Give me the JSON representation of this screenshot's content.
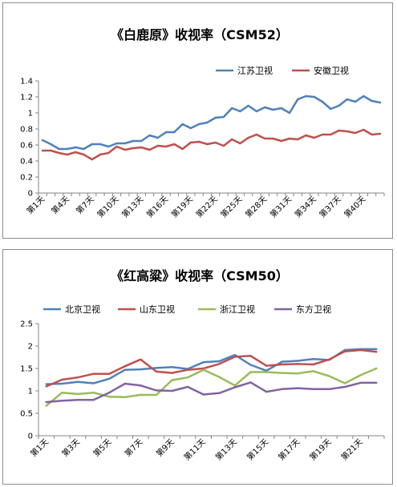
{
  "chart_data": [
    {
      "type": "line",
      "title": "《白鹿原》收视率（CSM52）",
      "xlabel": "",
      "ylabel": "",
      "ylim": [
        0,
        1.4
      ],
      "yticks": [
        "0",
        "0.2",
        "0.4",
        "0.6",
        "0.8",
        "1",
        "1.2",
        "1.4"
      ],
      "grid": false,
      "legend_position": "top-right",
      "categories": [
        "第1天",
        "第2天",
        "第3天",
        "第4天",
        "第5天",
        "第6天",
        "第7天",
        "第8天",
        "第9天",
        "第10天",
        "第11天",
        "第12天",
        "第13天",
        "第14天",
        "第15天",
        "第16天",
        "第17天",
        "第18天",
        "第19天",
        "第20天",
        "第21天",
        "第22天",
        "第23天",
        "第24天",
        "第25天",
        "第26天",
        "第27天",
        "第28天",
        "第29天",
        "第30天",
        "第31天",
        "第32天",
        "第33天",
        "第34天",
        "第35天",
        "第36天",
        "第37天",
        "第38天",
        "第39天",
        "第40天",
        "第41天",
        "第42天"
      ],
      "tick_labels": [
        "第1天",
        "第4天",
        "第7天",
        "第10天",
        "第13天",
        "第16天",
        "第19天",
        "第22天",
        "第25天",
        "第28天",
        "第31天",
        "第34天",
        "第37天",
        "第40天"
      ],
      "series": [
        {
          "name": "江苏卫视",
          "color": "#4f81bd",
          "values": [
            0.66,
            0.61,
            0.55,
            0.55,
            0.57,
            0.55,
            0.61,
            0.61,
            0.58,
            0.62,
            0.62,
            0.65,
            0.65,
            0.72,
            0.69,
            0.76,
            0.76,
            0.86,
            0.81,
            0.86,
            0.88,
            0.94,
            0.95,
            1.06,
            1.02,
            1.09,
            1.02,
            1.07,
            1.04,
            1.06,
            1.0,
            1.17,
            1.21,
            1.2,
            1.14,
            1.05,
            1.09,
            1.17,
            1.14,
            1.21,
            1.15,
            1.13
          ]
        },
        {
          "name": "安徽卫视",
          "color": "#c0504d",
          "values": [
            0.53,
            0.53,
            0.5,
            0.48,
            0.51,
            0.48,
            0.42,
            0.48,
            0.5,
            0.58,
            0.54,
            0.56,
            0.57,
            0.54,
            0.59,
            0.58,
            0.61,
            0.55,
            0.63,
            0.64,
            0.61,
            0.63,
            0.59,
            0.67,
            0.62,
            0.69,
            0.73,
            0.68,
            0.68,
            0.65,
            0.68,
            0.67,
            0.72,
            0.69,
            0.73,
            0.73,
            0.78,
            0.77,
            0.75,
            0.79,
            0.73,
            0.74
          ]
        }
      ]
    },
    {
      "type": "line",
      "title": "《红高粱》收视率（CSM50）",
      "xlabel": "",
      "ylabel": "",
      "ylim": [
        0,
        2.5
      ],
      "yticks": [
        "0",
        "0.5",
        "1",
        "1.5",
        "2",
        "2.5"
      ],
      "grid": false,
      "legend_position": "top",
      "categories": [
        "第1天",
        "第2天",
        "第3天",
        "第4天",
        "第5天",
        "第6天",
        "第7天",
        "第8天",
        "第9天",
        "第10天",
        "第11天",
        "第12天",
        "第13天",
        "第14天",
        "第15天",
        "第16天",
        "第17天",
        "第18天",
        "第19天",
        "第20天",
        "第21天",
        "第22天"
      ],
      "tick_labels": [
        "第1天",
        "第3天",
        "第5天",
        "第7天",
        "第9天",
        "第11天",
        "第13天",
        "第15天",
        "第17天",
        "第19天",
        "第21天"
      ],
      "series": [
        {
          "name": "北京卫视",
          "color": "#4f81bd",
          "values": [
            1.15,
            1.16,
            1.2,
            1.17,
            1.27,
            1.47,
            1.48,
            1.51,
            1.53,
            1.49,
            1.64,
            1.66,
            1.8,
            1.58,
            1.45,
            1.65,
            1.67,
            1.71,
            1.69,
            1.91,
            1.93,
            1.93
          ]
        },
        {
          "name": "山东卫视",
          "color": "#c0504d",
          "values": [
            1.1,
            1.25,
            1.3,
            1.38,
            1.38,
            1.55,
            1.7,
            1.43,
            1.4,
            1.47,
            1.5,
            1.6,
            1.76,
            1.78,
            1.56,
            1.59,
            1.6,
            1.59,
            1.7,
            1.88,
            1.91,
            1.87
          ]
        },
        {
          "name": "浙江卫视",
          "color": "#9bbb59",
          "values": [
            0.67,
            0.96,
            0.93,
            0.96,
            0.87,
            0.86,
            0.91,
            0.91,
            1.24,
            1.3,
            1.47,
            1.31,
            1.12,
            1.42,
            1.42,
            1.4,
            1.39,
            1.44,
            1.33,
            1.17,
            1.35,
            1.5
          ]
        },
        {
          "name": "东方卫视",
          "color": "#8064a2",
          "values": [
            0.75,
            0.78,
            0.8,
            0.8,
            0.96,
            1.16,
            1.12,
            1.01,
            1.0,
            1.09,
            0.92,
            0.95,
            1.08,
            1.19,
            0.98,
            1.04,
            1.06,
            1.04,
            1.04,
            1.09,
            1.18,
            1.18
          ]
        }
      ]
    }
  ]
}
